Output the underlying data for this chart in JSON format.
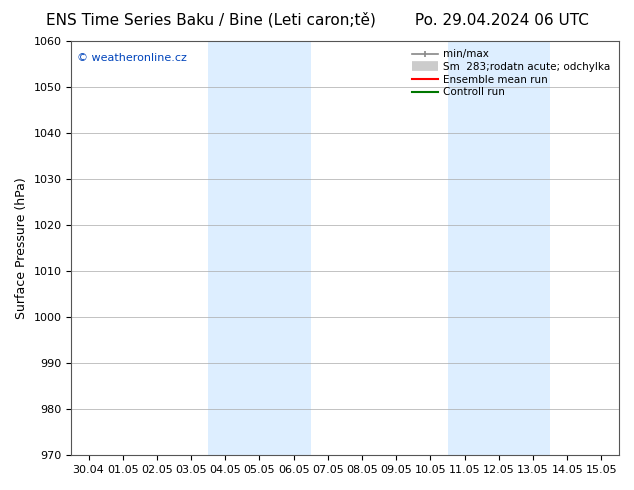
{
  "title_left": "ENS Time Series Baku / Bine (Leti caron;tě)",
  "title_right": "Po. 29.04.2024 06 UTC",
  "ylabel": "Surface Pressure (hPa)",
  "ylim": [
    970,
    1060
  ],
  "yticks": [
    970,
    980,
    990,
    1000,
    1010,
    1020,
    1030,
    1040,
    1050,
    1060
  ],
  "xtick_positions": [
    0,
    1,
    2,
    3,
    4,
    5,
    6,
    7,
    8,
    9,
    10,
    11,
    12,
    13,
    14,
    15
  ],
  "xtick_labels": [
    "30.04",
    "01.05",
    "02.05",
    "03.05",
    "04.05",
    "05.05",
    "06.05",
    "07.05",
    "08.05",
    "09.05",
    "10.05",
    "11.05",
    "12.05",
    "13.05",
    "14.05",
    "15.05"
  ],
  "xlim": [
    -0.5,
    15.5
  ],
  "shade_bands": [
    {
      "start": 3.5,
      "end": 6.5
    },
    {
      "start": 10.5,
      "end": 13.5
    }
  ],
  "shade_color": "#ddeeff",
  "bg_color": "#ffffff",
  "plot_bg_color": "#ffffff",
  "watermark": "© weatheronline.cz",
  "watermark_color": "#0044bb",
  "grid_color": "#aaaaaa",
  "grid_lw": 0.5,
  "title_fontsize": 11,
  "tick_fontsize": 8,
  "ylabel_fontsize": 9,
  "legend_min_max_color": "#888888",
  "legend_std_color": "#cccccc",
  "legend_mean_color": "#ff0000",
  "legend_ctrl_color": "#007700"
}
